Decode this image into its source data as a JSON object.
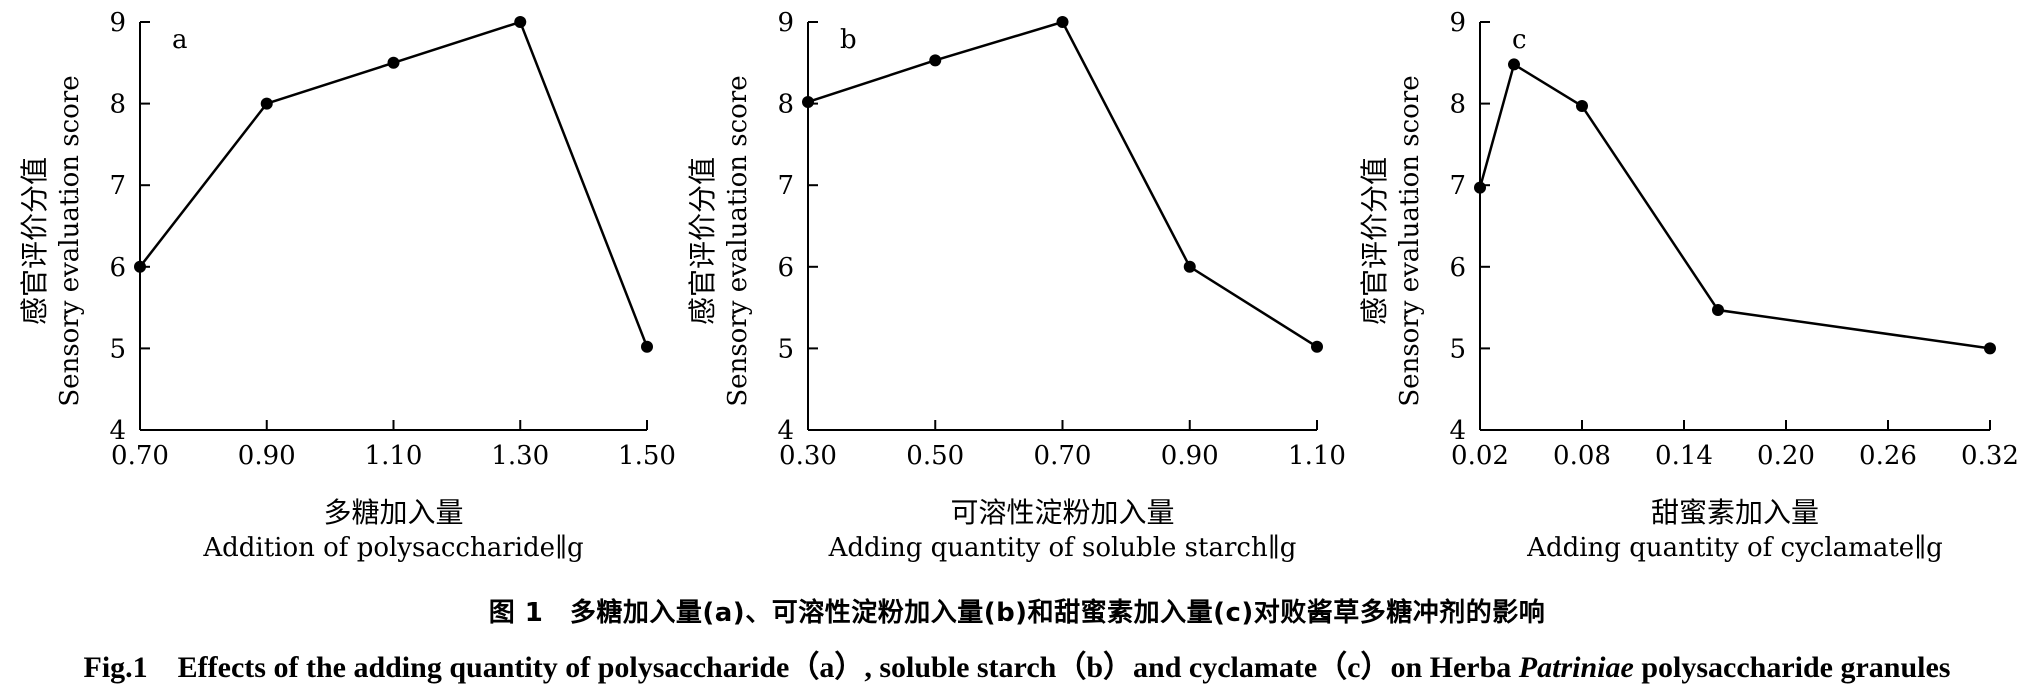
{
  "chart_data": [
    {
      "type": "line",
      "panel_label": "a",
      "ylabel_cn": "感官评价分值",
      "ylabel_en": "Sensory evaluation score",
      "xlabel_cn": "多糖加入量",
      "xlabel_en": "Addition of polysaccharide∥g",
      "xlim": [
        0.7,
        1.5
      ],
      "ylim": [
        4,
        9
      ],
      "xticks": [
        "0.70",
        "0.90",
        "1.10",
        "1.30",
        "1.50"
      ],
      "yticks": [
        "4",
        "5",
        "6",
        "7",
        "8",
        "9"
      ],
      "x": [
        0.7,
        0.9,
        1.1,
        1.3,
        1.5
      ],
      "y": [
        6.0,
        8.0,
        8.5,
        9.0,
        5.02
      ]
    },
    {
      "type": "line",
      "panel_label": "b",
      "ylabel_cn": "感官评价分值",
      "ylabel_en": "Sensory evaluation score",
      "xlabel_cn": "可溶性淀粉加入量",
      "xlabel_en": "Adding quantity of soluble starch∥g",
      "xlim": [
        0.3,
        1.1
      ],
      "ylim": [
        4,
        9
      ],
      "xticks": [
        "0.30",
        "0.50",
        "0.70",
        "0.90",
        "1.10"
      ],
      "yticks": [
        "4",
        "5",
        "6",
        "7",
        "8",
        "9"
      ],
      "x": [
        0.3,
        0.5,
        0.7,
        0.9,
        1.1
      ],
      "y": [
        8.02,
        8.53,
        9.0,
        6.0,
        5.02
      ]
    },
    {
      "type": "line",
      "panel_label": "c",
      "ylabel_cn": "感官评价分值",
      "ylabel_en": "Sensory evaluation score",
      "xlabel_cn": "甜蜜素加入量",
      "xlabel_en": "Adding quantity of cyclamate∥g",
      "xlim": [
        0.02,
        0.32
      ],
      "ylim": [
        4,
        9
      ],
      "xticks": [
        "0.02",
        "0.08",
        "0.14",
        "0.20",
        "0.26",
        "0.32"
      ],
      "yticks": [
        "4",
        "5",
        "6",
        "7",
        "8",
        "9"
      ],
      "x": [
        0.02,
        0.04,
        0.08,
        0.16,
        0.32
      ],
      "y": [
        6.97,
        8.48,
        7.97,
        5.47,
        5.0
      ]
    }
  ],
  "caption": {
    "cn": "图 1　多糖加入量(a)、可溶性淀粉加入量(b)和甜蜜素加入量(c)对败酱草多糖冲剂的影响",
    "en_prefix": "Fig.1　Effects of the adding quantity of polysaccharide（a）, soluble starch（b）and cyclamate（c）on Herba ",
    "en_italic": "Patriniae",
    "en_suffix": " polysaccharide granules"
  }
}
